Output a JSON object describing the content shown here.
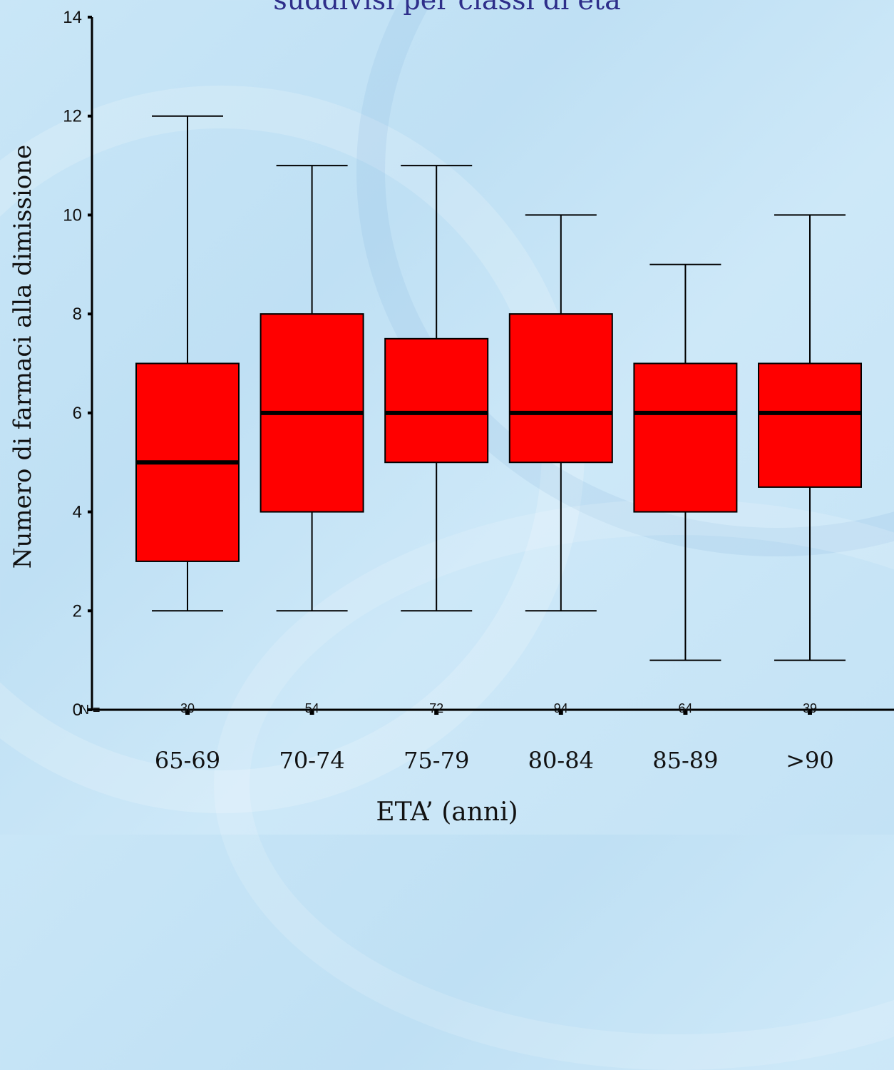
{
  "chart_data": {
    "type": "boxplot",
    "title": "suddivisi per classi di età",
    "xlabel": "ETA’ (anni)",
    "ylabel": "Numero di farmaci alla dimissione",
    "ylim": [
      0,
      14
    ],
    "yticks": [
      0,
      2,
      4,
      6,
      8,
      10,
      12,
      14
    ],
    "n_prefix": "N =",
    "categories": [
      "65-69",
      "70-74",
      "75-79",
      "80-84",
      "85-89",
      ">90"
    ],
    "n": [
      "30",
      "54",
      "72",
      "94",
      "64",
      "39"
    ],
    "boxes": [
      {
        "min": 2,
        "q1": 3,
        "median": 5,
        "q3": 7,
        "max": 12
      },
      {
        "min": 2,
        "q1": 4,
        "median": 6,
        "q3": 8,
        "max": 11
      },
      {
        "min": 2,
        "q1": 5,
        "median": 6,
        "q3": 7.5,
        "max": 11
      },
      {
        "min": 2,
        "q1": 5,
        "median": 6,
        "q3": 8,
        "max": 10
      },
      {
        "min": 1,
        "q1": 4,
        "median": 6,
        "q3": 7,
        "max": 9
      },
      {
        "min": 1,
        "q1": 4.5,
        "median": 6,
        "q3": 7,
        "max": 10
      }
    ],
    "box_color": "#ff0000",
    "grid": false
  }
}
